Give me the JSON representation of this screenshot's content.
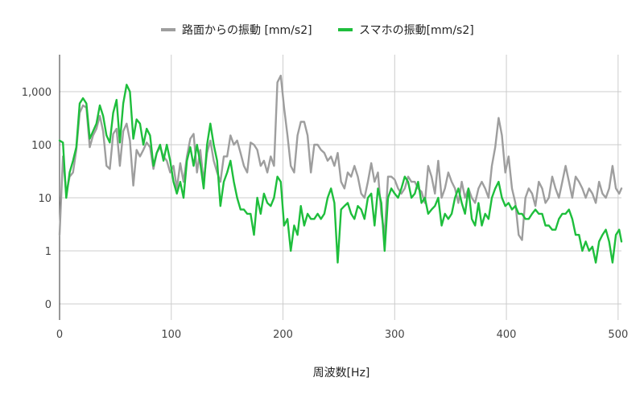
{
  "chart_data": {
    "type": "line",
    "title": "",
    "xlabel": "周波数[Hz]",
    "ylabel": "",
    "xlim": [
      0,
      503
    ],
    "y_scale": "log",
    "y_ticks": [
      0,
      1,
      10,
      100,
      1000
    ],
    "y_tick_labels": [
      "0",
      "1",
      "10",
      "100",
      "1,000"
    ],
    "x_ticks": [
      0,
      100,
      200,
      300,
      400,
      500
    ],
    "x_tick_labels": [
      "0",
      "100",
      "200",
      "300",
      "400",
      "500"
    ],
    "grid": true,
    "legend_position": "top",
    "series": [
      {
        "name": "路面からの振動 [mm/s2]",
        "color": "#9e9e9e",
        "points": [
          [
            0,
            2
          ],
          [
            3,
            60
          ],
          [
            6,
            12
          ],
          [
            9,
            25
          ],
          [
            12,
            30
          ],
          [
            15,
            80
          ],
          [
            18,
            400
          ],
          [
            21,
            550
          ],
          [
            24,
            500
          ],
          [
            27,
            90
          ],
          [
            30,
            150
          ],
          [
            33,
            200
          ],
          [
            36,
            350
          ],
          [
            39,
            180
          ],
          [
            42,
            40
          ],
          [
            45,
            35
          ],
          [
            48,
            160
          ],
          [
            51,
            200
          ],
          [
            54,
            40
          ],
          [
            57,
            180
          ],
          [
            60,
            250
          ],
          [
            63,
            120
          ],
          [
            66,
            17
          ],
          [
            69,
            80
          ],
          [
            72,
            60
          ],
          [
            75,
            80
          ],
          [
            78,
            110
          ],
          [
            81,
            90
          ],
          [
            84,
            35
          ],
          [
            87,
            70
          ],
          [
            90,
            90
          ],
          [
            93,
            60
          ],
          [
            96,
            50
          ],
          [
            99,
            30
          ],
          [
            102,
            40
          ],
          [
            105,
            15
          ],
          [
            108,
            45
          ],
          [
            111,
            20
          ],
          [
            114,
            60
          ],
          [
            117,
            130
          ],
          [
            120,
            160
          ],
          [
            123,
            30
          ],
          [
            126,
            80
          ],
          [
            129,
            20
          ],
          [
            132,
            70
          ],
          [
            135,
            120
          ],
          [
            138,
            50
          ],
          [
            141,
            30
          ],
          [
            144,
            20
          ],
          [
            147,
            60
          ],
          [
            150,
            60
          ],
          [
            153,
            150
          ],
          [
            156,
            100
          ],
          [
            159,
            120
          ],
          [
            162,
            70
          ],
          [
            165,
            40
          ],
          [
            168,
            30
          ],
          [
            171,
            110
          ],
          [
            174,
            100
          ],
          [
            177,
            80
          ],
          [
            180,
            40
          ],
          [
            183,
            50
          ],
          [
            186,
            30
          ],
          [
            189,
            60
          ],
          [
            192,
            40
          ],
          [
            195,
            1500
          ],
          [
            198,
            2000
          ],
          [
            201,
            500
          ],
          [
            204,
            150
          ],
          [
            207,
            40
          ],
          [
            210,
            30
          ],
          [
            213,
            150
          ],
          [
            216,
            270
          ],
          [
            219,
            270
          ],
          [
            222,
            150
          ],
          [
            225,
            30
          ],
          [
            228,
            100
          ],
          [
            231,
            100
          ],
          [
            234,
            80
          ],
          [
            237,
            70
          ],
          [
            240,
            50
          ],
          [
            243,
            60
          ],
          [
            246,
            40
          ],
          [
            249,
            70
          ],
          [
            252,
            20
          ],
          [
            255,
            15
          ],
          [
            258,
            30
          ],
          [
            261,
            25
          ],
          [
            264,
            40
          ],
          [
            267,
            25
          ],
          [
            270,
            12
          ],
          [
            273,
            10
          ],
          [
            276,
            20
          ],
          [
            279,
            45
          ],
          [
            282,
            20
          ],
          [
            285,
            30
          ],
          [
            288,
            5
          ],
          [
            291,
            2
          ],
          [
            294,
            25
          ],
          [
            297,
            25
          ],
          [
            300,
            22
          ],
          [
            303,
            15
          ],
          [
            306,
            12
          ],
          [
            309,
            15
          ],
          [
            312,
            25
          ],
          [
            315,
            20
          ],
          [
            318,
            20
          ],
          [
            321,
            15
          ],
          [
            324,
            13
          ],
          [
            327,
            8
          ],
          [
            330,
            40
          ],
          [
            333,
            25
          ],
          [
            336,
            12
          ],
          [
            339,
            50
          ],
          [
            342,
            10
          ],
          [
            345,
            15
          ],
          [
            348,
            30
          ],
          [
            351,
            20
          ],
          [
            354,
            15
          ],
          [
            357,
            8
          ],
          [
            360,
            20
          ],
          [
            363,
            10
          ],
          [
            366,
            15
          ],
          [
            369,
            10
          ],
          [
            372,
            8
          ],
          [
            375,
            15
          ],
          [
            378,
            20
          ],
          [
            381,
            15
          ],
          [
            384,
            10
          ],
          [
            387,
            40
          ],
          [
            390,
            90
          ],
          [
            393,
            320
          ],
          [
            396,
            150
          ],
          [
            399,
            30
          ],
          [
            402,
            60
          ],
          [
            405,
            15
          ],
          [
            408,
            8
          ],
          [
            411,
            2
          ],
          [
            414,
            1.6
          ],
          [
            417,
            10
          ],
          [
            420,
            15
          ],
          [
            423,
            12
          ],
          [
            426,
            7
          ],
          [
            429,
            20
          ],
          [
            432,
            15
          ],
          [
            435,
            8
          ],
          [
            438,
            10
          ],
          [
            441,
            25
          ],
          [
            444,
            15
          ],
          [
            447,
            10
          ],
          [
            450,
            20
          ],
          [
            453,
            40
          ],
          [
            456,
            20
          ],
          [
            459,
            10
          ],
          [
            462,
            25
          ],
          [
            465,
            20
          ],
          [
            468,
            15
          ],
          [
            471,
            10
          ],
          [
            474,
            15
          ],
          [
            477,
            12
          ],
          [
            480,
            8
          ],
          [
            483,
            20
          ],
          [
            486,
            12
          ],
          [
            489,
            10
          ],
          [
            492,
            15
          ],
          [
            495,
            40
          ],
          [
            498,
            15
          ],
          [
            501,
            12
          ],
          [
            503,
            15
          ]
        ]
      },
      {
        "name": "スマホの振動[mm/s2]",
        "color": "#1ebe3c",
        "points": [
          [
            0,
            120
          ],
          [
            3,
            110
          ],
          [
            6,
            10
          ],
          [
            9,
            30
          ],
          [
            12,
            50
          ],
          [
            15,
            90
          ],
          [
            18,
            600
          ],
          [
            21,
            750
          ],
          [
            24,
            600
          ],
          [
            27,
            130
          ],
          [
            30,
            180
          ],
          [
            33,
            250
          ],
          [
            36,
            550
          ],
          [
            39,
            350
          ],
          [
            42,
            150
          ],
          [
            45,
            110
          ],
          [
            48,
            400
          ],
          [
            51,
            700
          ],
          [
            54,
            110
          ],
          [
            57,
            600
          ],
          [
            60,
            1350
          ],
          [
            63,
            1000
          ],
          [
            66,
            130
          ],
          [
            69,
            300
          ],
          [
            72,
            250
          ],
          [
            75,
            100
          ],
          [
            78,
            200
          ],
          [
            81,
            150
          ],
          [
            84,
            40
          ],
          [
            87,
            70
          ],
          [
            90,
            100
          ],
          [
            93,
            50
          ],
          [
            96,
            100
          ],
          [
            99,
            50
          ],
          [
            102,
            20
          ],
          [
            105,
            12
          ],
          [
            108,
            20
          ],
          [
            111,
            10
          ],
          [
            114,
            50
          ],
          [
            117,
            90
          ],
          [
            120,
            40
          ],
          [
            123,
            100
          ],
          [
            126,
            45
          ],
          [
            129,
            15
          ],
          [
            132,
            100
          ],
          [
            135,
            250
          ],
          [
            138,
            100
          ],
          [
            141,
            50
          ],
          [
            144,
            7
          ],
          [
            147,
            20
          ],
          [
            150,
            30
          ],
          [
            153,
            50
          ],
          [
            156,
            20
          ],
          [
            159,
            10
          ],
          [
            162,
            6
          ],
          [
            165,
            6
          ],
          [
            168,
            5
          ],
          [
            171,
            5
          ],
          [
            174,
            2
          ],
          [
            177,
            10
          ],
          [
            180,
            5
          ],
          [
            183,
            12
          ],
          [
            186,
            8
          ],
          [
            189,
            7
          ],
          [
            192,
            10
          ],
          [
            195,
            25
          ],
          [
            198,
            20
          ],
          [
            201,
            3
          ],
          [
            204,
            4
          ],
          [
            207,
            1
          ],
          [
            210,
            3
          ],
          [
            213,
            2
          ],
          [
            216,
            7
          ],
          [
            219,
            3
          ],
          [
            222,
            5
          ],
          [
            225,
            4
          ],
          [
            228,
            4
          ],
          [
            231,
            5
          ],
          [
            234,
            4
          ],
          [
            237,
            5
          ],
          [
            240,
            10
          ],
          [
            243,
            15
          ],
          [
            246,
            8
          ],
          [
            249,
            0.6
          ],
          [
            252,
            6
          ],
          [
            255,
            7
          ],
          [
            258,
            8
          ],
          [
            261,
            5
          ],
          [
            264,
            4
          ],
          [
            267,
            7
          ],
          [
            270,
            6
          ],
          [
            273,
            4
          ],
          [
            276,
            10
          ],
          [
            279,
            12
          ],
          [
            282,
            3
          ],
          [
            285,
            15
          ],
          [
            288,
            8
          ],
          [
            291,
            1
          ],
          [
            294,
            10
          ],
          [
            297,
            15
          ],
          [
            300,
            12
          ],
          [
            303,
            10
          ],
          [
            306,
            15
          ],
          [
            309,
            25
          ],
          [
            312,
            20
          ],
          [
            315,
            10
          ],
          [
            318,
            12
          ],
          [
            321,
            20
          ],
          [
            324,
            8
          ],
          [
            327,
            10
          ],
          [
            330,
            5
          ],
          [
            333,
            6
          ],
          [
            336,
            7
          ],
          [
            339,
            10
          ],
          [
            342,
            3
          ],
          [
            345,
            5
          ],
          [
            348,
            4
          ],
          [
            351,
            5
          ],
          [
            354,
            10
          ],
          [
            357,
            15
          ],
          [
            360,
            8
          ],
          [
            363,
            5
          ],
          [
            366,
            15
          ],
          [
            369,
            4
          ],
          [
            372,
            3
          ],
          [
            375,
            8
          ],
          [
            378,
            3
          ],
          [
            381,
            5
          ],
          [
            384,
            4
          ],
          [
            387,
            10
          ],
          [
            390,
            15
          ],
          [
            393,
            20
          ],
          [
            396,
            10
          ],
          [
            399,
            7
          ],
          [
            402,
            8
          ],
          [
            405,
            6
          ],
          [
            408,
            7
          ],
          [
            411,
            5
          ],
          [
            414,
            5
          ],
          [
            417,
            4
          ],
          [
            420,
            4
          ],
          [
            423,
            5
          ],
          [
            426,
            6
          ],
          [
            429,
            5
          ],
          [
            432,
            5
          ],
          [
            435,
            3
          ],
          [
            438,
            3
          ],
          [
            441,
            2.5
          ],
          [
            444,
            2.5
          ],
          [
            447,
            4
          ],
          [
            450,
            5
          ],
          [
            453,
            5
          ],
          [
            456,
            6
          ],
          [
            459,
            4
          ],
          [
            462,
            2
          ],
          [
            465,
            2
          ],
          [
            468,
            1
          ],
          [
            471,
            1.5
          ],
          [
            474,
            1
          ],
          [
            477,
            1.2
          ],
          [
            480,
            0.6
          ],
          [
            483,
            1.5
          ],
          [
            486,
            2
          ],
          [
            489,
            2.5
          ],
          [
            492,
            1.5
          ],
          [
            495,
            0.6
          ],
          [
            498,
            2
          ],
          [
            501,
            2.5
          ],
          [
            503,
            1.5
          ]
        ]
      }
    ]
  }
}
